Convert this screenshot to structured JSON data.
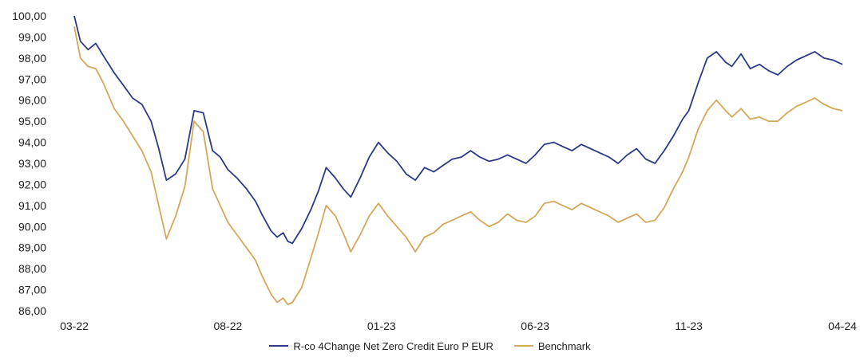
{
  "chart_data": {
    "type": "line",
    "title": "",
    "xlabel": "",
    "ylabel": "",
    "ylim": [
      86,
      100
    ],
    "y_ticks": [
      "100,00",
      "99,00",
      "98,00",
      "97,00",
      "96,00",
      "95,00",
      "94,00",
      "93,00",
      "92,00",
      "91,00",
      "90,00",
      "89,00",
      "88,00",
      "87,00",
      "86,00"
    ],
    "x_ticks": [
      "03-22",
      "08-22",
      "01-23",
      "06-23",
      "11-23",
      "04-24"
    ],
    "x_tick_index": [
      0,
      5,
      10,
      15,
      20,
      25
    ],
    "x_domain": [
      0,
      25
    ],
    "grid": false,
    "legend_position": "bottom-center",
    "series": [
      {
        "name": "R-co 4Change Net Zero Credit Euro P EUR",
        "color": "#2c3a86",
        "x": [
          0,
          0.2,
          0.45,
          0.7,
          0.95,
          1.3,
          1.6,
          1.9,
          2.2,
          2.5,
          2.75,
          3.0,
          3.3,
          3.6,
          3.9,
          4.2,
          4.5,
          4.75,
          5.0,
          5.3,
          5.6,
          5.9,
          6.1,
          6.4,
          6.6,
          6.8,
          6.95,
          7.1,
          7.4,
          7.7,
          7.95,
          8.2,
          8.5,
          8.75,
          9.0,
          9.3,
          9.6,
          9.9,
          10.2,
          10.5,
          10.8,
          11.1,
          11.4,
          11.7,
          12.0,
          12.3,
          12.6,
          12.9,
          13.2,
          13.5,
          13.8,
          14.1,
          14.4,
          14.7,
          15.0,
          15.3,
          15.6,
          15.9,
          16.2,
          16.5,
          16.8,
          17.1,
          17.4,
          17.7,
          18.0,
          18.3,
          18.6,
          18.9,
          19.2,
          19.5,
          19.8,
          20.0,
          20.3,
          20.6,
          20.9,
          21.2,
          21.4,
          21.7,
          22.0,
          22.3,
          22.6,
          22.9,
          23.2,
          23.5,
          23.8,
          24.1,
          24.4,
          24.7,
          25.0
        ],
        "values": [
          100.0,
          98.8,
          98.4,
          98.7,
          98.1,
          97.3,
          96.7,
          96.1,
          95.8,
          95.0,
          93.7,
          92.2,
          92.5,
          93.2,
          95.5,
          95.4,
          93.6,
          93.3,
          92.7,
          92.3,
          91.8,
          91.2,
          90.6,
          89.8,
          89.5,
          89.7,
          89.3,
          89.2,
          89.9,
          90.8,
          91.7,
          92.8,
          92.3,
          91.8,
          91.4,
          92.3,
          93.3,
          94.0,
          93.5,
          93.1,
          92.5,
          92.2,
          92.8,
          92.6,
          92.9,
          93.2,
          93.3,
          93.6,
          93.3,
          93.1,
          93.2,
          93.4,
          93.2,
          93.0,
          93.4,
          93.9,
          94.0,
          93.8,
          93.6,
          93.9,
          93.7,
          93.5,
          93.3,
          93.0,
          93.4,
          93.7,
          93.2,
          93.0,
          93.6,
          94.3,
          95.1,
          95.5,
          96.8,
          98.0,
          98.3,
          97.8,
          97.6,
          98.2,
          97.5,
          97.7,
          97.4,
          97.2,
          97.6,
          97.9,
          98.1,
          98.3,
          98.0,
          97.9,
          97.7
        ]
      },
      {
        "name": "Benchmark",
        "color": "#d4a85a",
        "x": [
          0,
          0.2,
          0.45,
          0.7,
          0.95,
          1.3,
          1.6,
          1.9,
          2.2,
          2.5,
          2.75,
          3.0,
          3.3,
          3.6,
          3.9,
          4.2,
          4.5,
          4.75,
          5.0,
          5.3,
          5.6,
          5.9,
          6.1,
          6.4,
          6.6,
          6.8,
          6.95,
          7.1,
          7.4,
          7.7,
          7.95,
          8.2,
          8.5,
          8.75,
          9.0,
          9.3,
          9.6,
          9.9,
          10.2,
          10.5,
          10.8,
          11.1,
          11.4,
          11.7,
          12.0,
          12.3,
          12.6,
          12.9,
          13.2,
          13.5,
          13.8,
          14.1,
          14.4,
          14.7,
          15.0,
          15.3,
          15.6,
          15.9,
          16.2,
          16.5,
          16.8,
          17.1,
          17.4,
          17.7,
          18.0,
          18.3,
          18.6,
          18.9,
          19.2,
          19.5,
          19.8,
          20.0,
          20.3,
          20.6,
          20.9,
          21.2,
          21.4,
          21.7,
          22.0,
          22.3,
          22.6,
          22.9,
          23.2,
          23.5,
          23.8,
          24.1,
          24.4,
          24.7,
          25.0
        ],
        "values": [
          99.5,
          98.0,
          97.6,
          97.5,
          96.8,
          95.6,
          95.0,
          94.3,
          93.6,
          92.6,
          91.0,
          89.4,
          90.5,
          91.9,
          95.0,
          94.5,
          91.8,
          91.0,
          90.2,
          89.6,
          89.0,
          88.4,
          87.7,
          86.8,
          86.4,
          86.6,
          86.3,
          86.4,
          87.1,
          88.5,
          89.7,
          91.0,
          90.5,
          89.7,
          88.8,
          89.6,
          90.5,
          91.1,
          90.5,
          90.0,
          89.5,
          88.8,
          89.5,
          89.7,
          90.1,
          90.3,
          90.5,
          90.7,
          90.3,
          90.0,
          90.2,
          90.6,
          90.3,
          90.2,
          90.5,
          91.1,
          91.2,
          91.0,
          90.8,
          91.1,
          90.9,
          90.7,
          90.5,
          90.2,
          90.4,
          90.6,
          90.2,
          90.3,
          90.9,
          91.8,
          92.6,
          93.3,
          94.6,
          95.5,
          96.0,
          95.5,
          95.2,
          95.6,
          95.1,
          95.2,
          95.0,
          95.0,
          95.4,
          95.7,
          95.9,
          96.1,
          95.8,
          95.6,
          95.5
        ]
      }
    ]
  }
}
